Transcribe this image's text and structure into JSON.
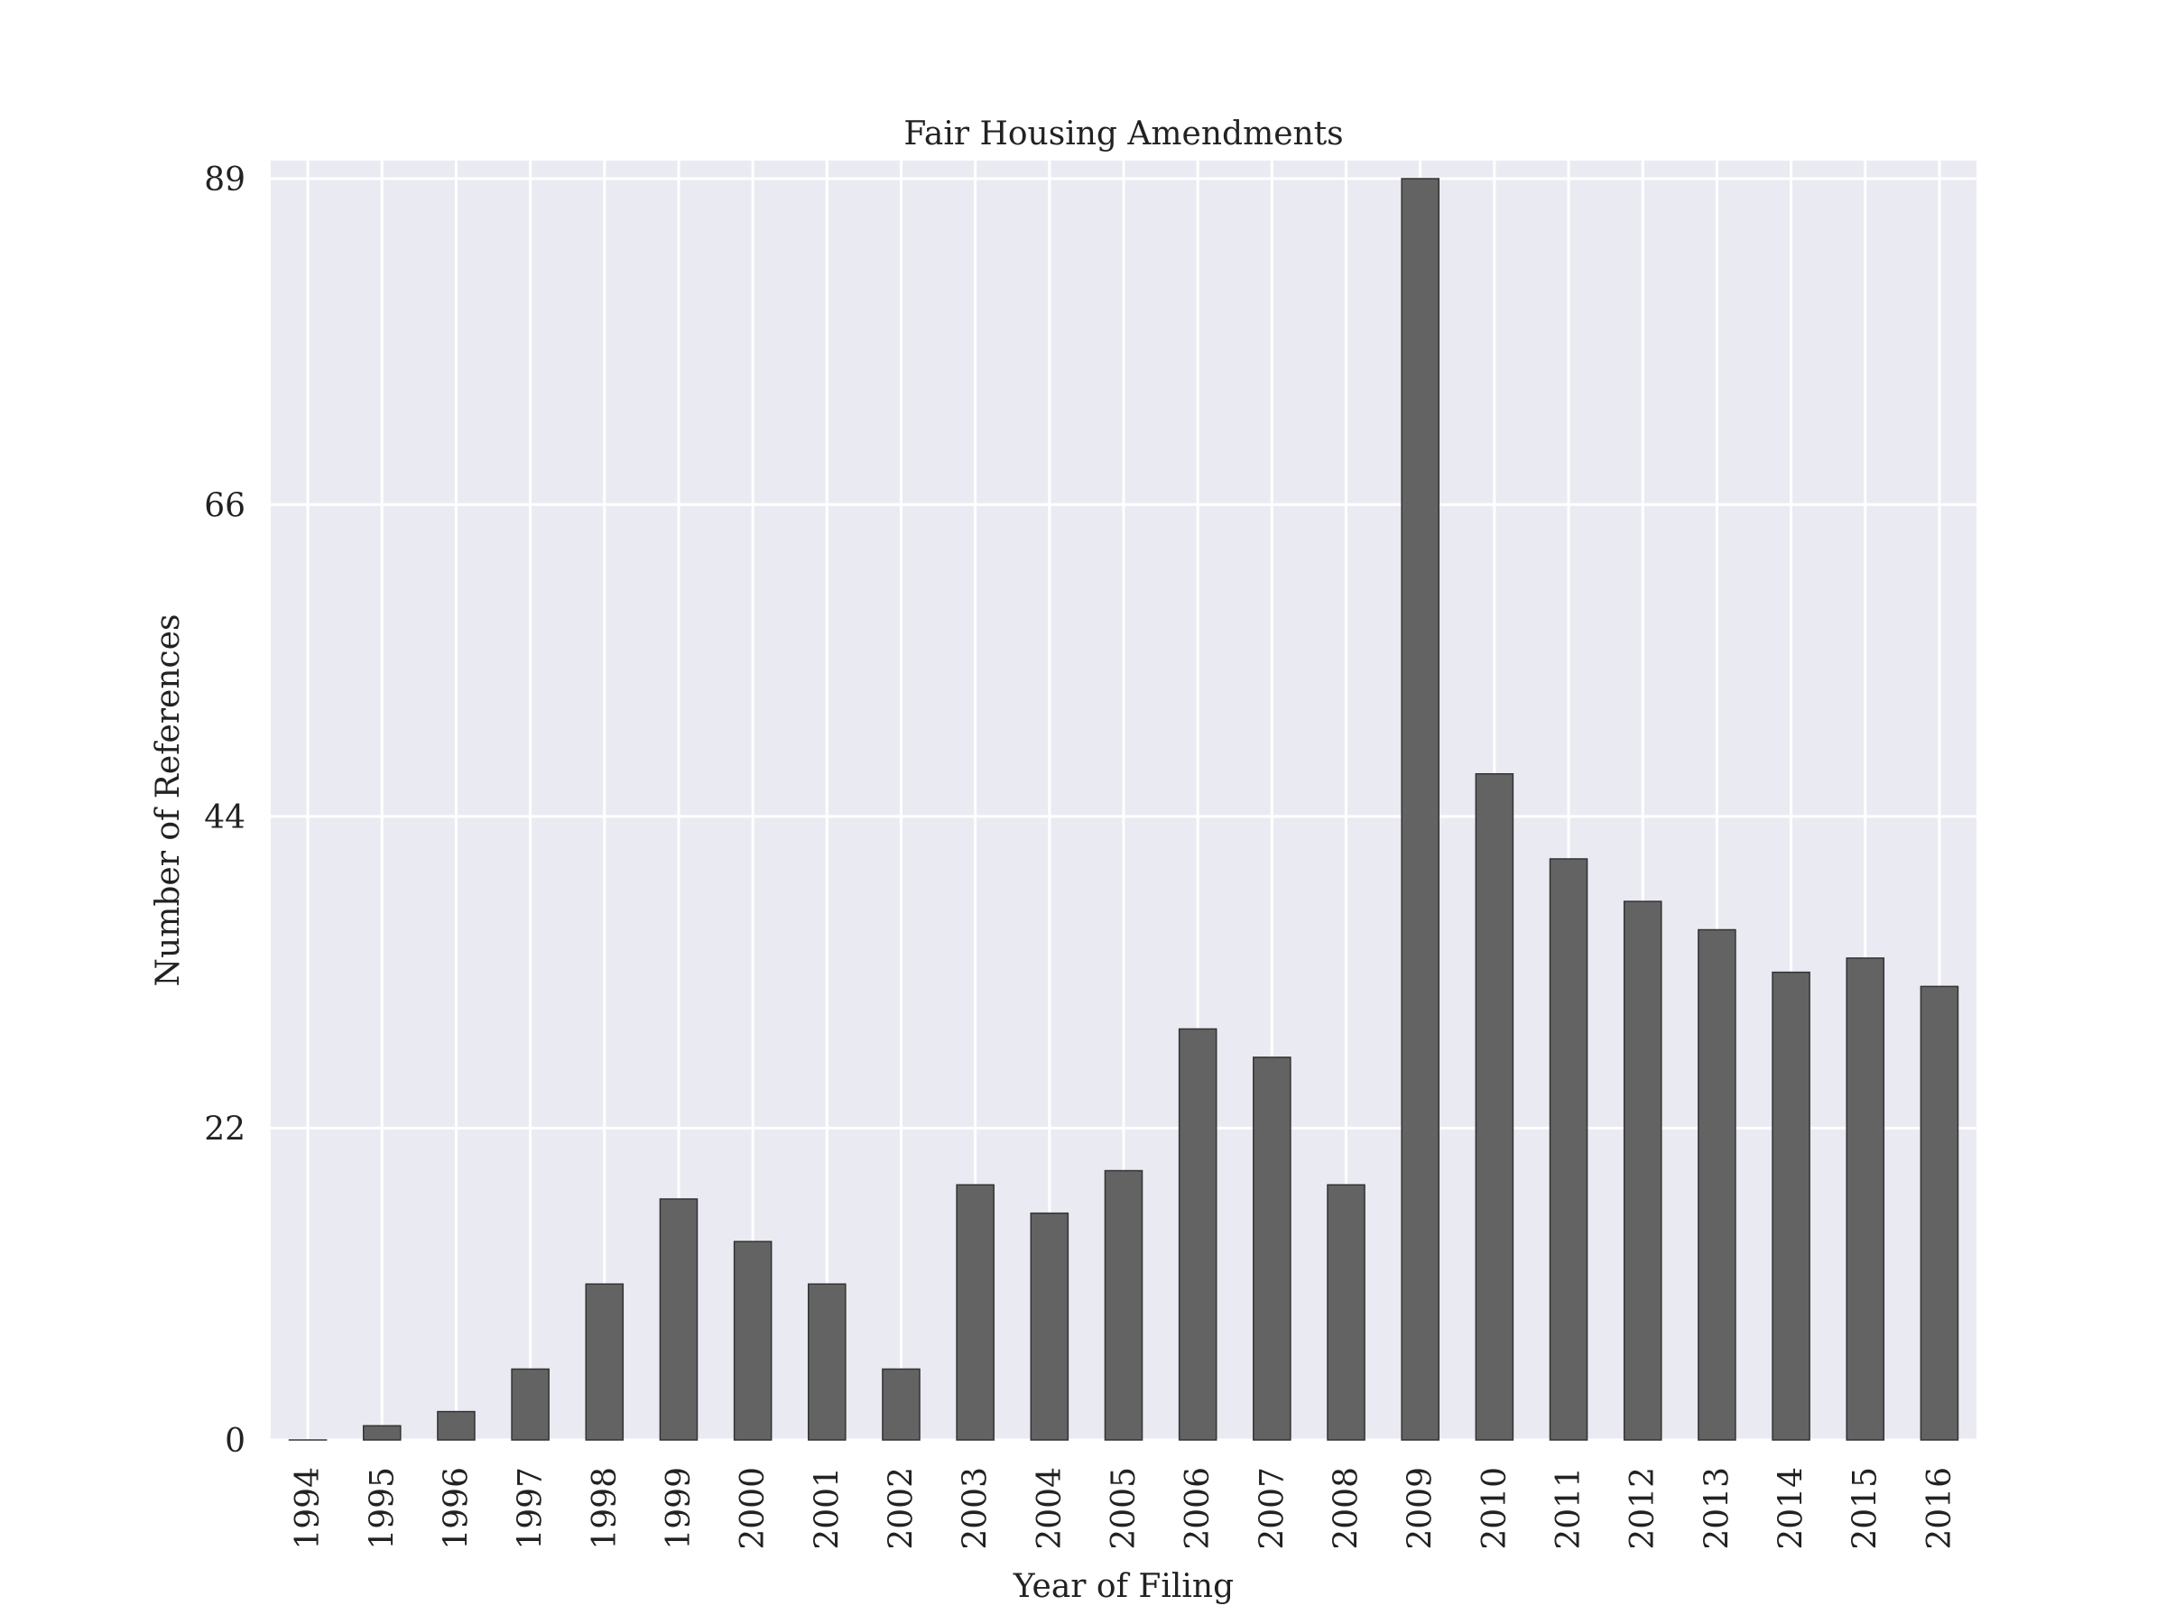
{
  "chart_data": {
    "type": "bar",
    "title": "Fair Housing Amendments",
    "xlabel": "Year of Filing",
    "ylabel": "Number of References",
    "categories": [
      "1994",
      "1995",
      "1996",
      "1997",
      "1998",
      "1999",
      "2000",
      "2001",
      "2002",
      "2003",
      "2004",
      "2005",
      "2006",
      "2007",
      "2008",
      "2009",
      "2010",
      "2011",
      "2012",
      "2013",
      "2014",
      "2015",
      "2016"
    ],
    "values": [
      0,
      1,
      2,
      5,
      11,
      17,
      14,
      11,
      5,
      18,
      16,
      19,
      29,
      27,
      18,
      89,
      47,
      41,
      38,
      36,
      33,
      34,
      32
    ],
    "ylim": [
      0,
      89
    ],
    "yticks": [
      0,
      22,
      44,
      66,
      89
    ],
    "grid": true,
    "colors": {
      "background": "#eaeaf2",
      "grid": "#ffffff",
      "bar": "#636363",
      "bar_edge": "#333333",
      "text": "#222222"
    }
  }
}
